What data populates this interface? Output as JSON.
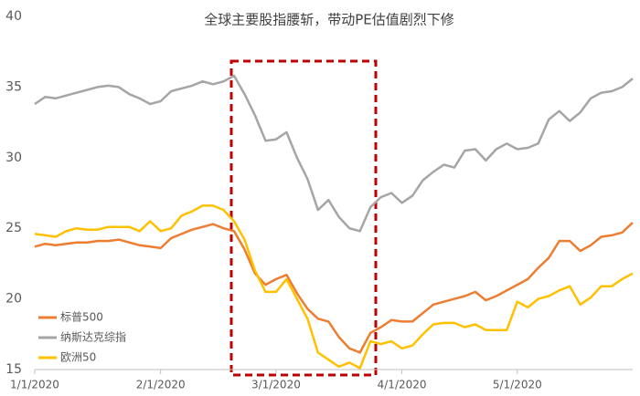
{
  "chart_data": {
    "type": "line",
    "title": "全球主要股指腰斩，带动PE估值剧烈下修",
    "categories": [
      "1/1/2020",
      null,
      null,
      null,
      null,
      null,
      null,
      null,
      null,
      null,
      null,
      null,
      "2/1/2020",
      null,
      null,
      null,
      null,
      null,
      null,
      null,
      null,
      null,
      null,
      "3/1/2020",
      null,
      null,
      null,
      null,
      null,
      null,
      null,
      null,
      null,
      null,
      null,
      "4/1/2020",
      null,
      null,
      null,
      null,
      null,
      null,
      null,
      null,
      null,
      null,
      "5/1/2020",
      null,
      null,
      null,
      null,
      null,
      null,
      null,
      null,
      null,
      null,
      null
    ],
    "series": [
      {
        "name": "标普500",
        "color": "#ED7D31",
        "values": [
          23.7,
          23.9,
          23.8,
          23.9,
          24.0,
          24.0,
          24.1,
          24.1,
          24.2,
          24.0,
          23.8,
          23.7,
          23.6,
          24.3,
          24.6,
          24.9,
          25.1,
          25.3,
          25.0,
          24.8,
          23.5,
          21.8,
          21.0,
          21.4,
          21.7,
          20.4,
          19.3,
          18.6,
          18.4,
          17.3,
          16.5,
          16.2,
          17.6,
          18.0,
          18.5,
          18.4,
          18.4,
          19.0,
          19.6,
          19.8,
          20.0,
          20.2,
          20.5,
          19.9,
          20.2,
          20.6,
          21.0,
          21.4,
          22.2,
          22.9,
          24.1,
          24.1,
          23.4,
          23.8,
          24.4,
          24.5,
          24.7,
          25.4
        ]
      },
      {
        "name": "纳斯达克综指",
        "color": "#A5A5A5",
        "values": [
          33.8,
          34.3,
          34.2,
          34.4,
          34.6,
          34.8,
          35.0,
          35.1,
          35.0,
          34.5,
          34.2,
          33.8,
          34.0,
          34.7,
          34.9,
          35.1,
          35.4,
          35.2,
          35.4,
          35.8,
          34.5,
          33.0,
          31.2,
          31.3,
          31.8,
          30.0,
          28.5,
          26.3,
          27.0,
          25.8,
          25.0,
          24.8,
          26.5,
          27.2,
          27.5,
          26.8,
          27.3,
          28.4,
          29.0,
          29.5,
          29.3,
          30.5,
          30.6,
          29.8,
          30.6,
          31.0,
          30.6,
          30.7,
          31.0,
          32.7,
          33.3,
          32.6,
          33.2,
          34.2,
          34.6,
          34.7,
          35.0,
          35.6
        ]
      },
      {
        "name": "欧洲50",
        "color": "#FFC000",
        "values": [
          24.6,
          24.5,
          24.4,
          24.8,
          25.0,
          24.9,
          24.9,
          25.1,
          25.1,
          25.1,
          24.8,
          25.5,
          24.8,
          25.0,
          25.9,
          26.2,
          26.6,
          26.6,
          26.3,
          25.5,
          24.2,
          22.0,
          20.5,
          20.5,
          21.4,
          20.0,
          18.6,
          16.2,
          15.7,
          15.2,
          15.5,
          15.1,
          17.0,
          16.8,
          17.0,
          16.5,
          16.7,
          17.5,
          18.2,
          18.3,
          18.3,
          18.0,
          18.2,
          17.8,
          17.8,
          17.8,
          19.8,
          19.4,
          20.0,
          20.2,
          20.6,
          20.9,
          19.6,
          20.1,
          20.9,
          20.9,
          21.4,
          21.8
        ]
      }
    ],
    "ylim": [
      15,
      40
    ],
    "yticks": [
      15,
      20,
      25,
      30,
      35,
      40
    ],
    "grid": false
  }
}
